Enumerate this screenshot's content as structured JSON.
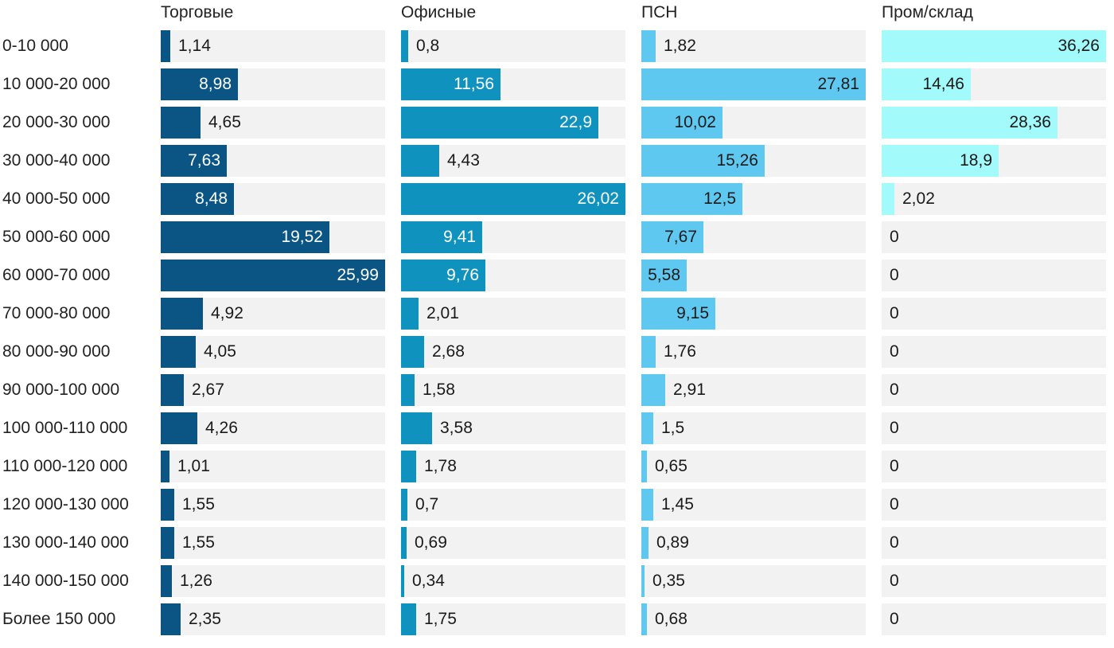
{
  "chart_data": {
    "type": "bar",
    "orientation": "horizontal",
    "layout": "small-multiples",
    "categories": [
      "0-10 000",
      "10 000-20 000",
      "20 000-30 000",
      "30 000-40 000",
      "40 000-50 000",
      "50 000-60 000",
      "60 000-70 000",
      "70 000-80 000",
      "80 000-90 000",
      "90 000-100 000",
      "100 000-110 000",
      "110 000-120 000",
      "120 000-130 000",
      "130 000-140 000",
      "140 000-150 000",
      "Более 150 000"
    ],
    "series": [
      {
        "name": "Торговые",
        "color": "#0a5584",
        "max": 26,
        "values": [
          1.14,
          8.98,
          4.65,
          7.63,
          8.48,
          19.52,
          25.99,
          4.92,
          4.05,
          2.67,
          4.26,
          1.01,
          1.55,
          1.55,
          1.26,
          2.35
        ],
        "labels": [
          "1,14",
          "8,98",
          "4,65",
          "7,63",
          "8,48",
          "19,52",
          "25,99",
          "4,92",
          "4,05",
          "2,67",
          "4,26",
          "1,01",
          "1,55",
          "1,55",
          "1,26",
          "2,35"
        ]
      },
      {
        "name": "Офисные",
        "color": "#0f92be",
        "max": 26,
        "values": [
          0.8,
          11.56,
          22.9,
          4.43,
          26.02,
          9.41,
          9.76,
          2.01,
          2.68,
          1.58,
          3.58,
          1.78,
          0.7,
          0.69,
          0.34,
          1.75
        ],
        "labels": [
          "0,8",
          "11,56",
          "22,9",
          "4,43",
          "26,02",
          "9,41",
          "9,76",
          "2,01",
          "2,68",
          "1,58",
          "3,58",
          "1,78",
          "0,7",
          "0,69",
          "0,34",
          "1,75"
        ]
      },
      {
        "name": "ПСН",
        "color": "#5fc8f1",
        "max": 27.81,
        "values": [
          1.82,
          27.81,
          10.02,
          15.26,
          12.5,
          7.67,
          5.58,
          9.15,
          1.76,
          2.91,
          1.5,
          0.65,
          1.45,
          0.89,
          0.35,
          0.68
        ],
        "labels": [
          "1,82",
          "27,81",
          "10,02",
          "15,26",
          "12,5",
          "7,67",
          "5,58",
          "9,15",
          "1,76",
          "2,91",
          "1,5",
          "0,65",
          "1,45",
          "0,89",
          "0,35",
          "0,68"
        ]
      },
      {
        "name": "Пром/склад",
        "color": "#a2fafa",
        "max": 36.26,
        "values": [
          36.26,
          14.46,
          28.36,
          18.9,
          2.02,
          0,
          0,
          0,
          0,
          0,
          0,
          0,
          0,
          0,
          0,
          0
        ],
        "labels": [
          "36,26",
          "14,46",
          "28,36",
          "18,9",
          "2,02",
          "0",
          "0",
          "0",
          "0",
          "0",
          "0",
          "0",
          "0",
          "0",
          "0",
          "0"
        ]
      }
    ],
    "grid": false,
    "legend": "none"
  }
}
